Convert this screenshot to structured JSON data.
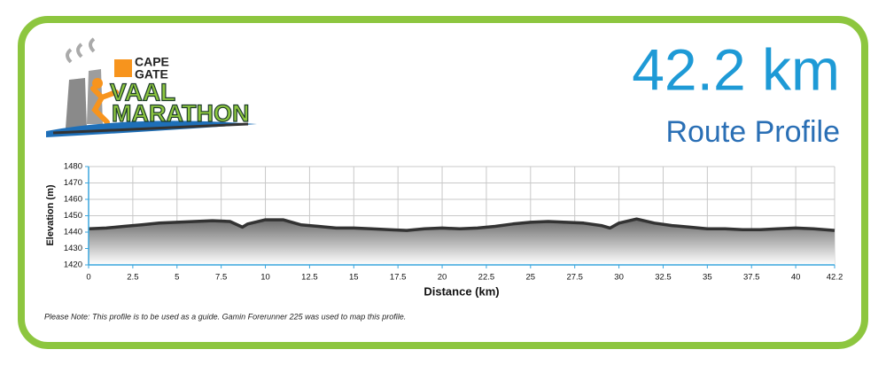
{
  "header": {
    "distance": "42.2 km",
    "subtitle": "Route Profile"
  },
  "logo": {
    "brand_top": "CAPE",
    "brand_bottom": "GATE",
    "line1": "VAAL",
    "line2": "MARATHON"
  },
  "note": "Please Note: This profile is to be used as a guide.  Gamin Forerunner 225 was used to map this profile.",
  "chart_data": {
    "type": "area",
    "x_label": "Distance (km)",
    "y_label": "Elevation (m)",
    "x": [
      0,
      1,
      2,
      3,
      4,
      5,
      6,
      7,
      8,
      8.7,
      9,
      10,
      11,
      12,
      13,
      14,
      15,
      16,
      17,
      18,
      19,
      20,
      21,
      22,
      23,
      24,
      25,
      26,
      27,
      28,
      29,
      29.5,
      30,
      31,
      32,
      33,
      34,
      35,
      36,
      37,
      38,
      39,
      40,
      41,
      42.2
    ],
    "values": [
      1442,
      1442.5,
      1443.5,
      1444.5,
      1445.5,
      1446,
      1446.5,
      1447,
      1446.5,
      1443,
      1445,
      1447.5,
      1447.5,
      1444.5,
      1443.5,
      1442.5,
      1442.5,
      1442,
      1441.5,
      1441,
      1442,
      1442.5,
      1442,
      1442.5,
      1443.5,
      1445,
      1446,
      1446.5,
      1446,
      1445.5,
      1444,
      1442.5,
      1445.5,
      1448,
      1445.5,
      1444,
      1443,
      1442,
      1442,
      1441.5,
      1441.5,
      1442,
      1442.5,
      1442,
      1441
    ],
    "color": "#333333",
    "xlim": [
      0,
      42.2
    ],
    "xticks": [
      0,
      2.5,
      5,
      7.5,
      10,
      12.5,
      15,
      17.5,
      20,
      22.5,
      25,
      27.5,
      30,
      32.5,
      35,
      37.5,
      40,
      42.2
    ],
    "ylim": [
      1420,
      1480
    ],
    "yticks": [
      1420,
      1430,
      1440,
      1450,
      1460,
      1470,
      1480
    ],
    "grid": true
  }
}
